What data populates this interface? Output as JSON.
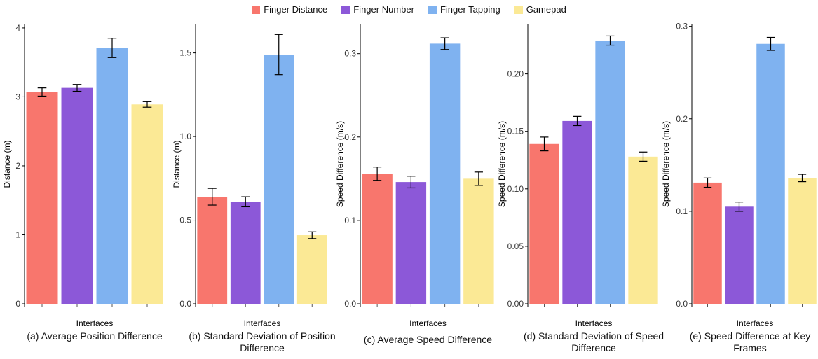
{
  "legend": [
    {
      "name": "Finger Distance",
      "color": "#f8766d"
    },
    {
      "name": "Finger Number",
      "color": "#8c58d8"
    },
    {
      "name": "Finger Tapping",
      "color": "#7fb2f0"
    },
    {
      "name": "Gamepad",
      "color": "#fbe995"
    }
  ],
  "chart_data": [
    {
      "type": "bar",
      "caption": "(a) Average Position Difference",
      "xlabel": "Interfaces",
      "ylabel": "Distance (m)",
      "ylim": [
        0,
        4.05
      ],
      "yticks": [
        0,
        1,
        2,
        3,
        4
      ],
      "ytick_labels": [
        "0",
        "1",
        "2",
        "3",
        "4"
      ],
      "categories": [
        "Finger Distance",
        "Finger Number",
        "Finger Tapping",
        "Gamepad"
      ],
      "values": [
        3.07,
        3.13,
        3.71,
        2.89
      ],
      "errors": [
        0.06,
        0.05,
        0.14,
        0.04
      ],
      "grid": false
    },
    {
      "type": "bar",
      "caption": "(b) Standard Deviation of Position Difference",
      "xlabel": "Interfaces",
      "ylabel": "Distance (m)",
      "ylim": [
        0,
        1.67
      ],
      "yticks": [
        0,
        0.5,
        1.0,
        1.5
      ],
      "ytick_labels": [
        "0.0",
        "0.5",
        "1.0",
        "1.5"
      ],
      "categories": [
        "Finger Distance",
        "Finger Number",
        "Finger Tapping",
        "Gamepad"
      ],
      "values": [
        0.64,
        0.61,
        1.49,
        0.41
      ],
      "errors": [
        0.05,
        0.03,
        0.12,
        0.02
      ],
      "grid": false
    },
    {
      "type": "bar",
      "caption": "(c) Average Speed Difference",
      "xlabel": "Interfaces",
      "ylabel": "Speed Difference (m/s)",
      "ylim": [
        0,
        0.335
      ],
      "yticks": [
        0,
        0.1,
        0.2,
        0.3
      ],
      "ytick_labels": [
        "0.0",
        "0.1",
        "0.2",
        "0.3"
      ],
      "categories": [
        "Finger Distance",
        "Finger Number",
        "Finger Tapping",
        "Gamepad"
      ],
      "values": [
        0.156,
        0.146,
        0.312,
        0.15
      ],
      "errors": [
        0.008,
        0.007,
        0.007,
        0.008
      ],
      "grid": false
    },
    {
      "type": "bar",
      "caption": "(d) Standard Deviation of Speed Difference",
      "xlabel": "Interfaces",
      "ylabel": "Speed Difference (m/s)",
      "ylim": [
        0,
        0.243
      ],
      "yticks": [
        0,
        0.05,
        0.1,
        0.15,
        0.2
      ],
      "ytick_labels": [
        "0.00",
        "0.05",
        "0.10",
        "0.15",
        "0.20"
      ],
      "categories": [
        "Finger Distance",
        "Finger Number",
        "Finger Tapping",
        "Gamepad"
      ],
      "values": [
        0.139,
        0.159,
        0.229,
        0.128
      ],
      "errors": [
        0.006,
        0.004,
        0.004,
        0.004
      ],
      "grid": false
    },
    {
      "type": "bar",
      "caption": "(e) Speed Difference at Key Frames",
      "xlabel": "Interfaces",
      "ylabel": "Speed Difference (m/s)",
      "ylim": [
        0,
        0.302
      ],
      "yticks": [
        0,
        0.1,
        0.2,
        0.3
      ],
      "ytick_labels": [
        "0.0",
        "0.1",
        "0.2",
        "0.3"
      ],
      "categories": [
        "Finger Distance",
        "Finger Number",
        "Finger Tapping",
        "Gamepad"
      ],
      "values": [
        0.131,
        0.105,
        0.281,
        0.136
      ],
      "errors": [
        0.005,
        0.005,
        0.007,
        0.004
      ],
      "grid": false
    }
  ]
}
